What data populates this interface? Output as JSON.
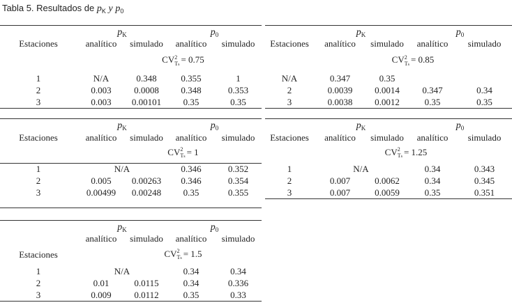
{
  "title": {
    "text": "Tabla 5. Resultados de",
    "var1": "p",
    "sub1": "K",
    "conj": "y",
    "var2": "p",
    "sub2": "0"
  },
  "blocks": [
    {
      "group_headers": [
        {
          "var": "p",
          "sub": "K"
        },
        {
          "var": "p",
          "sub": "0"
        }
      ],
      "column_headers": [
        "Estaciones",
        "analítico",
        "simulado",
        "analítico",
        "simulado"
      ],
      "cv": {
        "var": "CV",
        "sup": "2",
        "sub": "T",
        "subsub": "s",
        "value": "= 0.75"
      },
      "rows": [
        [
          "1",
          "N/A",
          "0.348",
          "0.355",
          "1"
        ],
        [
          "2",
          "0.003",
          "0.0008",
          "0.348",
          "0.353"
        ],
        [
          "3",
          "0.003",
          "0.00101",
          "0.35",
          "0.35"
        ]
      ]
    },
    {
      "group_headers": [
        {
          "var": "p",
          "sub": "K"
        },
        {
          "var": "p",
          "sub": "0"
        }
      ],
      "column_headers": [
        "Estaciones",
        "analítico",
        "simulado",
        "analítico",
        "simulado"
      ],
      "cv": {
        "var": "CV",
        "sup": "2",
        "sub": "T",
        "subsub": "s",
        "value": "= 0.85"
      },
      "rows": [
        [
          "N/A",
          "0.347",
          "0.35"
        ],
        [
          "2",
          "0.0039",
          "0.0014",
          "0.347",
          "0.34"
        ],
        [
          "3",
          "0.0038",
          "0.0012",
          "0.35",
          "0.35"
        ]
      ]
    },
    {
      "group_headers": [
        {
          "var": "p",
          "sub": "K"
        },
        {
          "var": "p",
          "sub": "0"
        }
      ],
      "column_headers": [
        "Estaciones",
        "analítico",
        "simulado",
        "analítico",
        "simulado"
      ],
      "cv": {
        "var": "CV",
        "sup": "2",
        "sub": "T",
        "subsub": "s",
        "value": "= 1"
      },
      "rows": [
        [
          "1",
          "N/A",
          "0.346",
          "0.352"
        ],
        [
          "2",
          "0.005",
          "0.00263",
          "0.346",
          "0.354"
        ],
        [
          "3",
          "0.00499",
          "0.00248",
          "0.35",
          "0.355"
        ]
      ]
    },
    {
      "group_headers": [
        {
          "var": "p",
          "sub": "K"
        },
        {
          "var": "p",
          "sub": "0"
        }
      ],
      "column_headers": [
        "Estaciones",
        "analítico",
        "simulado",
        "analítico",
        "simulado"
      ],
      "cv": {
        "var": "CV",
        "sup": "2",
        "sub": "T",
        "subsub": "s",
        "value": "= 1.25"
      },
      "rows": [
        [
          "1",
          "N/A",
          "0.34",
          "0.343"
        ],
        [
          "2",
          "0.007",
          "0.0062",
          "0.34",
          "0.345"
        ],
        [
          "3",
          "0.007",
          "0.0059",
          "0.35",
          "0.351"
        ]
      ]
    },
    {
      "group_headers": [
        {
          "var": "p",
          "sub": "K"
        },
        {
          "var": "p",
          "sub": "0"
        }
      ],
      "column_headers": [
        "Estaciones",
        "analítico",
        "simulado",
        "analítico",
        "simulado"
      ],
      "cv": {
        "var": "CV",
        "sup": "2",
        "sub": "T",
        "subsub": "s",
        "value": "= 1.5"
      },
      "rows": [
        [
          "1",
          "N/A",
          "0.34",
          "0.34"
        ],
        [
          "2",
          "0.01",
          "0.0115",
          "0.34",
          "0.336"
        ],
        [
          "3",
          "0.009",
          "0.0112",
          "0.35",
          "0.33"
        ]
      ]
    }
  ]
}
